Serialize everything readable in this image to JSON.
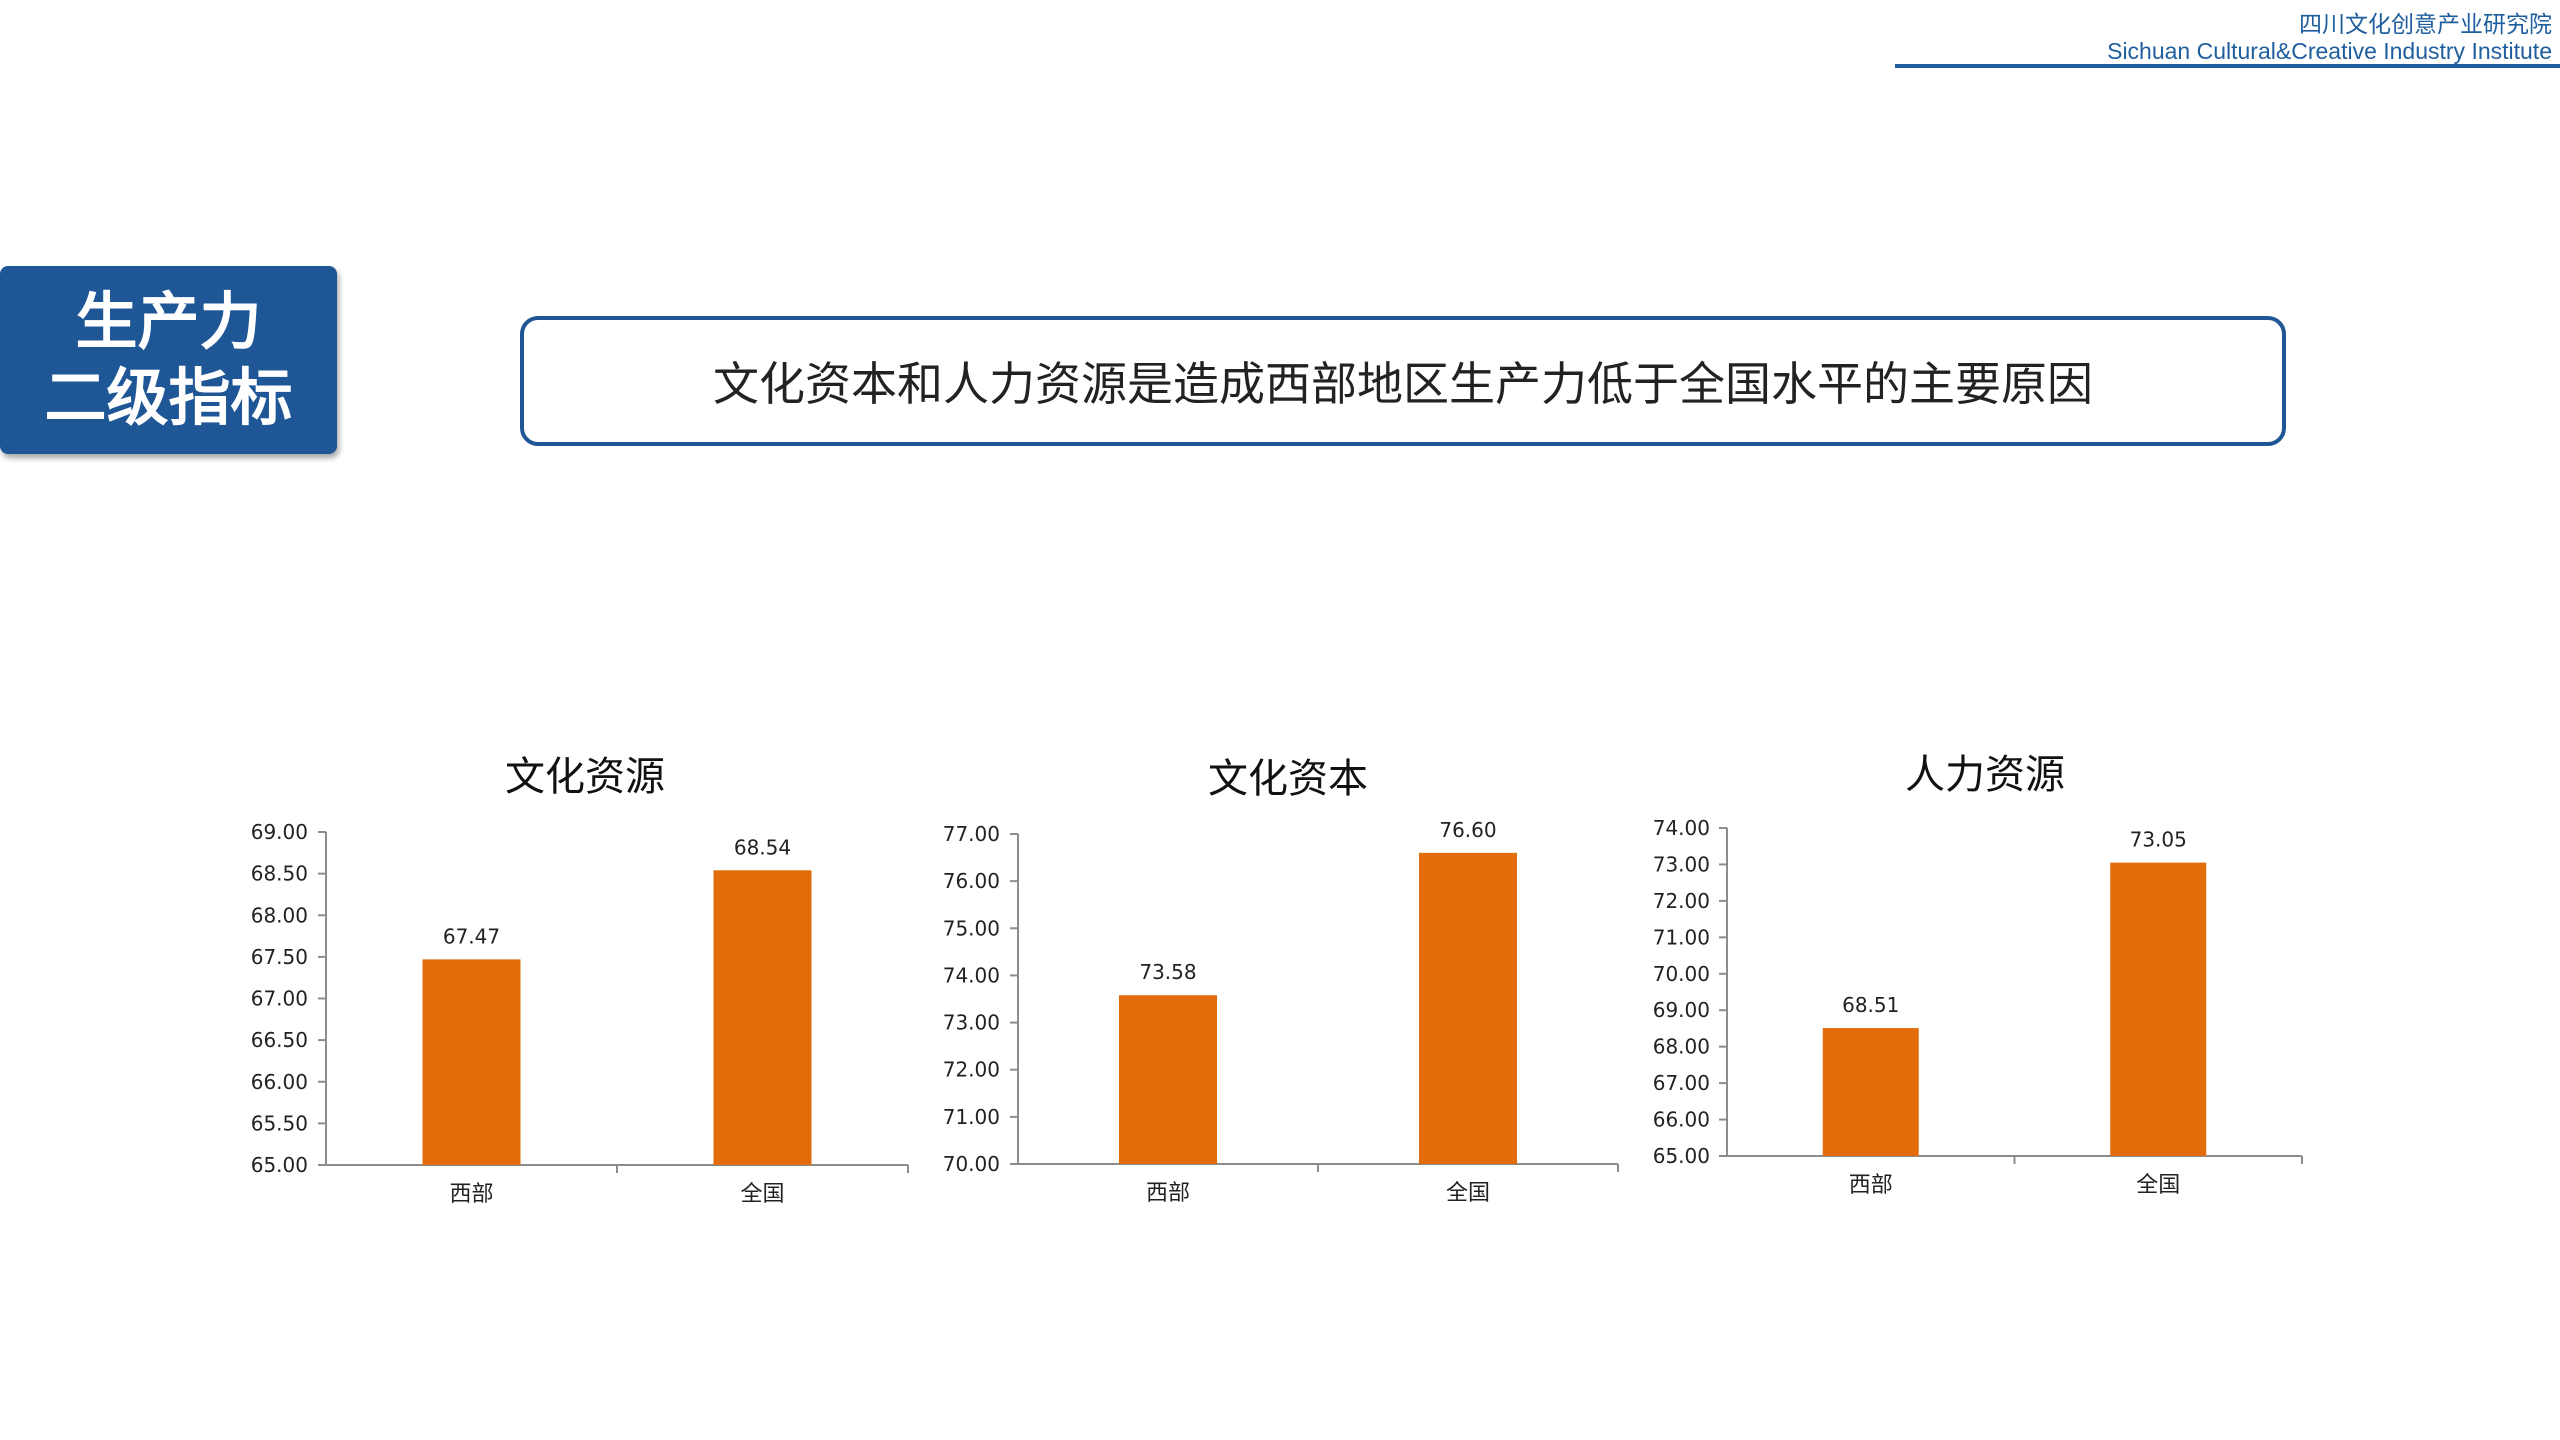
{
  "header": {
    "brand_cn": "四川文化创意产业研究院",
    "brand_en": "Sichuan Cultural&Creative Industry Institute"
  },
  "section_tab": {
    "line1": "生产力",
    "line2": "二级指标"
  },
  "headline": "文化资本和人力资源是造成西部地区生产力低于全国水平的主要原因",
  "colors": {
    "bar": "#e36c0a",
    "brand_blue": "#1f5696",
    "axis": "#8c8c8c"
  },
  "chart_data": [
    {
      "type": "bar",
      "title": "文化资源",
      "categories": [
        "西部",
        "全国"
      ],
      "values": [
        67.47,
        68.54
      ],
      "value_labels": [
        "67.47",
        "68.54"
      ],
      "ylim": [
        65.0,
        69.0
      ],
      "yticks": [
        "65.00",
        "65.50",
        "66.00",
        "66.50",
        "67.00",
        "67.50",
        "68.00",
        "68.50",
        "69.00"
      ],
      "grid": false
    },
    {
      "type": "bar",
      "title": "文化资本",
      "categories": [
        "西部",
        "全国"
      ],
      "values": [
        73.58,
        76.6
      ],
      "value_labels": [
        "73.58",
        "76.60"
      ],
      "ylim": [
        70.0,
        77.0
      ],
      "yticks": [
        "70.00",
        "71.00",
        "72.00",
        "73.00",
        "74.00",
        "75.00",
        "76.00",
        "77.00"
      ],
      "grid": false
    },
    {
      "type": "bar",
      "title": "人力资源",
      "categories": [
        "西部",
        "全国"
      ],
      "values": [
        68.51,
        73.05
      ],
      "value_labels": [
        "68.51",
        "73.05"
      ],
      "ylim": [
        65.0,
        74.0
      ],
      "yticks": [
        "65.00",
        "66.00",
        "67.00",
        "68.00",
        "69.00",
        "70.00",
        "71.00",
        "72.00",
        "73.00",
        "74.00"
      ],
      "grid": false
    }
  ]
}
